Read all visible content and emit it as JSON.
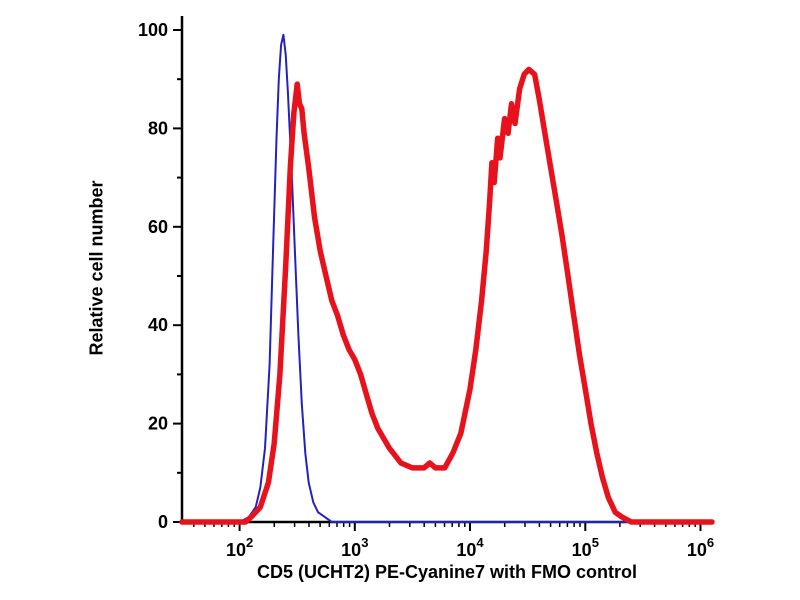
{
  "chart_data": {
    "type": "line",
    "chart_kind": "flow-cytometry-histogram",
    "title": "",
    "xlabel": "CD5 (UCHT2) PE-Cyanine7 with FMO control",
    "ylabel": "Relative cell number",
    "x_scale": "log10",
    "x_log_range": [
      1.5,
      6.1
    ],
    "x_major_ticks": [
      2,
      3,
      4,
      5,
      6
    ],
    "x_major_tick_labels": [
      "10²",
      "10³",
      "10⁴",
      "10⁵",
      "10⁶"
    ],
    "ylim": [
      0,
      100
    ],
    "y_ticks": [
      0,
      20,
      40,
      60,
      80,
      100
    ],
    "grid": false,
    "legend": "none",
    "axis_color": "#000000",
    "background_color": "#ffffff",
    "series": [
      {
        "id": "fmo-control",
        "name": "FMO control",
        "color": "#2222c0",
        "width": 2,
        "points": [
          [
            1.5,
            0
          ],
          [
            2.0,
            0
          ],
          [
            2.08,
            1
          ],
          [
            2.14,
            3
          ],
          [
            2.18,
            7
          ],
          [
            2.22,
            15
          ],
          [
            2.26,
            32
          ],
          [
            2.29,
            55
          ],
          [
            2.32,
            78
          ],
          [
            2.34,
            90
          ],
          [
            2.36,
            97
          ],
          [
            2.38,
            99
          ],
          [
            2.4,
            95
          ],
          [
            2.42,
            87
          ],
          [
            2.45,
            72
          ],
          [
            2.48,
            55
          ],
          [
            2.51,
            38
          ],
          [
            2.54,
            24
          ],
          [
            2.57,
            14
          ],
          [
            2.6,
            8
          ],
          [
            2.64,
            4
          ],
          [
            2.68,
            2
          ],
          [
            2.74,
            1
          ],
          [
            2.8,
            0
          ],
          [
            6.1,
            0
          ]
        ]
      },
      {
        "id": "cd5-pe-cyanine7",
        "name": "CD5 (UCHT2) PE-Cyanine7",
        "color": "#e8121c",
        "width": 5.5,
        "points": [
          [
            1.5,
            0
          ],
          [
            2.05,
            0
          ],
          [
            2.1,
            1
          ],
          [
            2.18,
            3
          ],
          [
            2.25,
            8
          ],
          [
            2.3,
            16
          ],
          [
            2.35,
            30
          ],
          [
            2.4,
            52
          ],
          [
            2.44,
            72
          ],
          [
            2.47,
            83
          ],
          [
            2.5,
            89
          ],
          [
            2.52,
            85
          ],
          [
            2.54,
            84
          ],
          [
            2.56,
            79
          ],
          [
            2.6,
            72
          ],
          [
            2.65,
            62
          ],
          [
            2.7,
            55
          ],
          [
            2.75,
            50
          ],
          [
            2.8,
            45
          ],
          [
            2.85,
            42
          ],
          [
            2.9,
            38
          ],
          [
            2.95,
            35
          ],
          [
            3.0,
            33
          ],
          [
            3.05,
            30
          ],
          [
            3.1,
            26
          ],
          [
            3.15,
            22
          ],
          [
            3.2,
            19
          ],
          [
            3.3,
            15
          ],
          [
            3.4,
            12
          ],
          [
            3.5,
            11
          ],
          [
            3.6,
            11
          ],
          [
            3.65,
            12
          ],
          [
            3.7,
            11
          ],
          [
            3.78,
            11
          ],
          [
            3.85,
            14
          ],
          [
            3.92,
            18
          ],
          [
            4.0,
            27
          ],
          [
            4.05,
            35
          ],
          [
            4.1,
            45
          ],
          [
            4.14,
            55
          ],
          [
            4.17,
            65
          ],
          [
            4.19,
            73
          ],
          [
            4.21,
            69
          ],
          [
            4.24,
            78
          ],
          [
            4.26,
            74
          ],
          [
            4.3,
            82
          ],
          [
            4.33,
            79
          ],
          [
            4.36,
            85
          ],
          [
            4.39,
            81
          ],
          [
            4.43,
            88
          ],
          [
            4.47,
            91
          ],
          [
            4.51,
            92
          ],
          [
            4.56,
            91
          ],
          [
            4.6,
            86
          ],
          [
            4.65,
            79
          ],
          [
            4.7,
            72
          ],
          [
            4.75,
            65
          ],
          [
            4.8,
            58
          ],
          [
            4.85,
            50
          ],
          [
            4.9,
            42
          ],
          [
            4.95,
            34
          ],
          [
            5.0,
            27
          ],
          [
            5.05,
            20
          ],
          [
            5.1,
            14
          ],
          [
            5.15,
            9
          ],
          [
            5.2,
            5
          ],
          [
            5.26,
            2
          ],
          [
            5.32,
            1
          ],
          [
            5.4,
            0
          ],
          [
            6.1,
            0
          ]
        ]
      }
    ]
  }
}
